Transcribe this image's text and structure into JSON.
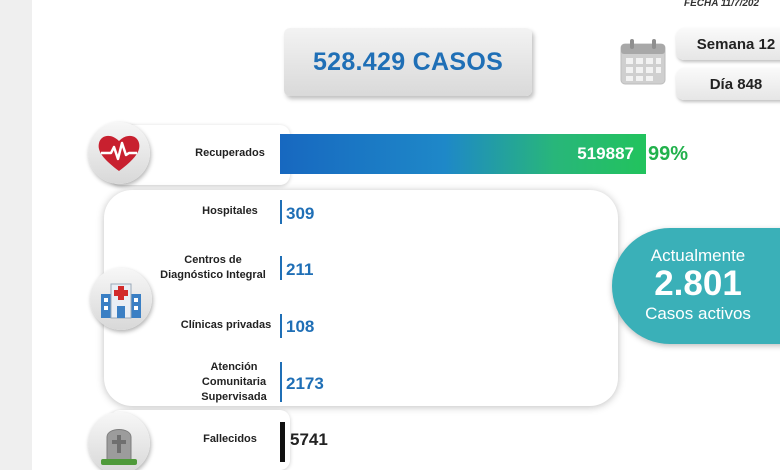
{
  "header": {
    "fecha": "FECHA 11/7/202",
    "total_casos": "528.429 CASOS",
    "semana": "Semana 12",
    "dia": "Día 848"
  },
  "recuperados": {
    "label": "Recuperados",
    "value": "519887",
    "percent": "99%"
  },
  "activos_desglose": [
    {
      "label": "Hospitales",
      "value": "309"
    },
    {
      "label": "Centros de Diagnóstico Integral",
      "value": "211"
    },
    {
      "label": "Clínicas privadas",
      "value": "108"
    },
    {
      "label": "Atención Comunitaria Supervisada",
      "value": "2173"
    }
  ],
  "actualmente": {
    "line1": "Actualmente",
    "value": "2.801",
    "line3": "Casos activos"
  },
  "fallecidos": {
    "label": "Fallecidos",
    "value": "5741"
  },
  "icons": {
    "recuperados": "heart-pulse-icon",
    "activos": "hospital-icon",
    "fallecidos": "gravestone-icon",
    "fecha": "calendar-icon"
  },
  "colors": {
    "accent_blue": "#1f6fb6",
    "recovered_green": "#22b14c",
    "active_teal": "#3ab0b8"
  }
}
